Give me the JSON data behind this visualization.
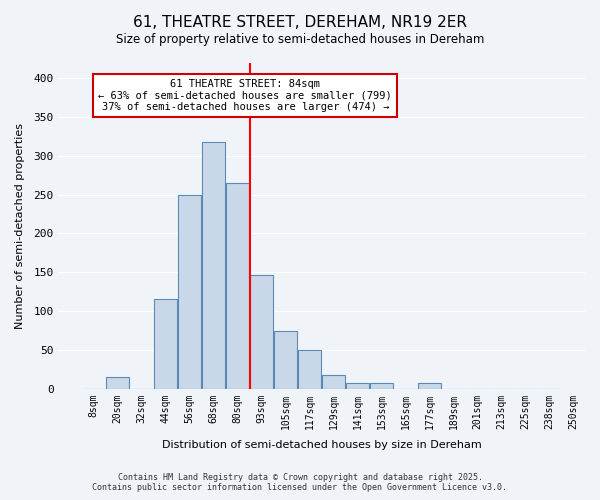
{
  "title": "61, THEATRE STREET, DEREHAM, NR19 2ER",
  "subtitle": "Size of property relative to semi-detached houses in Dereham",
  "xlabel": "Distribution of semi-detached houses by size in Dereham",
  "ylabel": "Number of semi-detached properties",
  "bin_labels": [
    "8sqm",
    "20sqm",
    "32sqm",
    "44sqm",
    "56sqm",
    "68sqm",
    "80sqm",
    "93sqm",
    "105sqm",
    "117sqm",
    "129sqm",
    "141sqm",
    "153sqm",
    "165sqm",
    "177sqm",
    "189sqm",
    "201sqm",
    "213sqm",
    "225sqm",
    "238sqm",
    "250sqm"
  ],
  "bar_values": [
    0,
    15,
    0,
    115,
    250,
    318,
    265,
    147,
    75,
    50,
    18,
    8,
    8,
    0,
    8,
    0,
    0,
    0,
    0,
    0
  ],
  "bar_color": "#c8d8e8",
  "bar_edge_color": "#5a8ab5",
  "vline_x": 6.5,
  "vline_color": "red",
  "ylim": [
    0,
    420
  ],
  "yticks": [
    0,
    50,
    100,
    150,
    200,
    250,
    300,
    350,
    400
  ],
  "annotation_title": "61 THEATRE STREET: 84sqm",
  "annotation_line1": "← 63% of semi-detached houses are smaller (799)",
  "annotation_line2": "37% of semi-detached houses are larger (474) →",
  "annotation_box_color": "#ffffff",
  "annotation_box_edge": "#cc0000",
  "footer_line1": "Contains HM Land Registry data © Crown copyright and database right 2025.",
  "footer_line2": "Contains public sector information licensed under the Open Government Licence v3.0.",
  "bg_color": "#f0f4f8"
}
